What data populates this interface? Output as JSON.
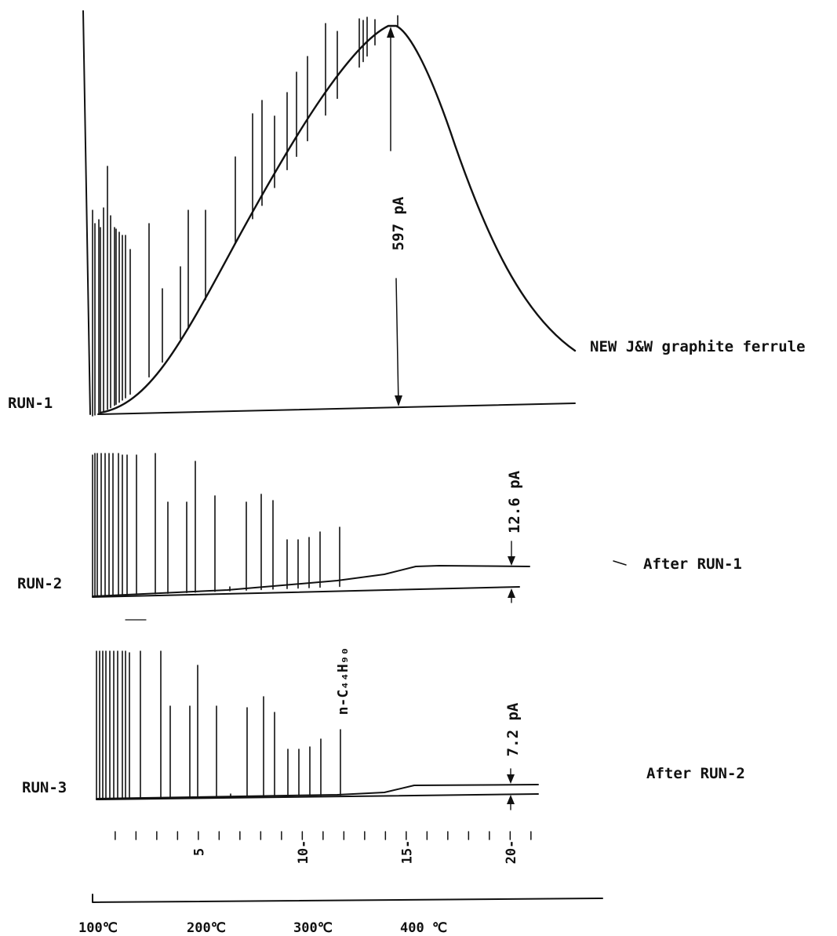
{
  "chart_data": [
    {
      "type": "line",
      "run_label": "RUN-1",
      "description_label": "NEW J&W graphite ferrule",
      "annotation": "597 pA",
      "peak_count": 32,
      "baseline_rise_pA": 597
    },
    {
      "type": "line",
      "run_label": "RUN-2",
      "description_label": "After RUN-1",
      "annotation": "12.6 pA",
      "peak_count": 24,
      "baseline_rise_pA": 12.6
    },
    {
      "type": "line",
      "run_label": "RUN-3",
      "description_label": "After RUN-2",
      "annotation": "7.2 pA",
      "peak_label": "n-C₄₄H₉₀",
      "peak_count": 24,
      "baseline_rise_pA": 7.2
    }
  ],
  "time_axis": {
    "ticks": [
      {
        "value": 5,
        "label": "5"
      },
      {
        "value": 10,
        "label": "10"
      },
      {
        "value": 15,
        "label": "15"
      },
      {
        "value": 20,
        "label": "20"
      }
    ],
    "range": [
      0,
      21
    ]
  },
  "temperature_axis": {
    "ticks": [
      {
        "value": 100,
        "label": "100℃"
      },
      {
        "value": 200,
        "label": "200℃"
      },
      {
        "value": 300,
        "label": "300℃"
      },
      {
        "value": 400,
        "label": "400 ℃"
      }
    ]
  }
}
